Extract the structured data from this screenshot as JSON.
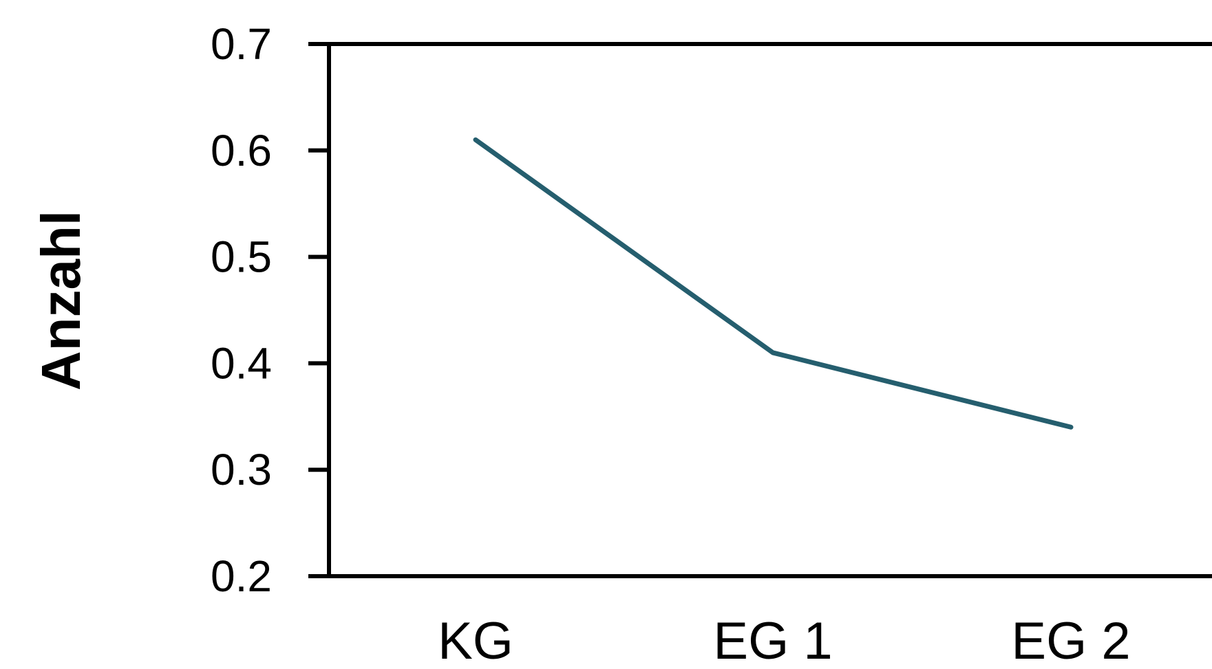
{
  "chart_data": {
    "type": "line",
    "categories": [
      "KG",
      "EG 1",
      "EG 2"
    ],
    "series": [
      {
        "values": [
          0.61,
          0.41,
          0.34
        ],
        "color": "#255e6e"
      }
    ],
    "xlabel": "",
    "ylabel": "Anzahl",
    "ylim": [
      0.2,
      0.7
    ],
    "yticks": [
      "0.7",
      "0.6",
      "0.5",
      "0.4",
      "0.3",
      "0.2"
    ],
    "grid": false
  }
}
